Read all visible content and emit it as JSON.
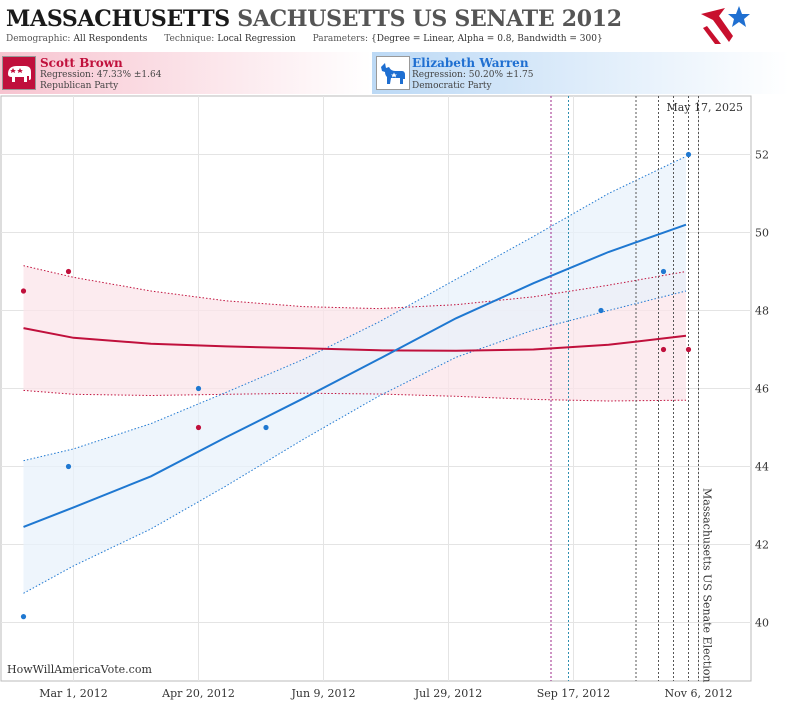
{
  "header": {
    "title_part1": "MASSACHUSETTS",
    "title_part2": "SACHUSETTS US SENATE",
    "title_year": "2012",
    "demographic_label": "Demographic:",
    "demographic_value": "All Respondents",
    "technique_label": "Technique:",
    "technique_value": "Local Regression",
    "parameters_label": "Parameters:",
    "parameters_value": "{Degree = Linear, Alpha = 0.8, Bandwidth = 300}"
  },
  "candidates": [
    {
      "name": "Scott Brown",
      "regression": "Regression: 47.33% ±1.64",
      "party": "Republican Party",
      "color": "#c0103c"
    },
    {
      "name": "Elizabeth Warren",
      "regression": "Regression: 50.20% ±1.75",
      "party": "Democratic Party",
      "color": "#1f78d1"
    }
  ],
  "chart_data": {
    "type": "line",
    "date_label": "May 17, 2025",
    "watermark": "HowWillAmericaVote.com",
    "election_label": "Massachusetts US Senate Election",
    "x_ticks": [
      "Mar 1, 2012",
      "Apr 20, 2012",
      "Jun 9, 2012",
      "Jul 29, 2012",
      "Sep 17, 2012",
      "Nov 6, 2012"
    ],
    "xlim": [
      "2012-02-01",
      "2012-11-27"
    ],
    "ylim": [
      38.5,
      53.5
    ],
    "y_ticks": [
      40,
      42,
      44,
      46,
      48,
      50,
      52
    ],
    "grid": true,
    "vlines": [
      {
        "date": "2012-09-08",
        "color": "#9c2a8a"
      },
      {
        "date": "2012-09-15",
        "color": "#2f8fb0"
      },
      {
        "date": "2012-10-12",
        "color": "#555555"
      },
      {
        "date": "2012-10-21",
        "color": "#555555"
      },
      {
        "date": "2012-10-27",
        "color": "#555555"
      },
      {
        "date": "2012-11-02",
        "color": "#555555"
      },
      {
        "date": "2012-11-06",
        "color": "#555555"
      }
    ],
    "series": [
      {
        "name": "Scott Brown",
        "color": "#c0103c",
        "band_fill": "#fbe4ea",
        "trend": [
          [
            "2012-02-10",
            47.55
          ],
          [
            "2012-03-01",
            47.3
          ],
          [
            "2012-04-01",
            47.15
          ],
          [
            "2012-05-01",
            47.08
          ],
          [
            "2012-06-01",
            47.03
          ],
          [
            "2012-07-01",
            46.98
          ],
          [
            "2012-08-01",
            46.97
          ],
          [
            "2012-09-01",
            47.0
          ],
          [
            "2012-10-01",
            47.12
          ],
          [
            "2012-11-01",
            47.35
          ]
        ],
        "upper": [
          [
            "2012-02-10",
            49.15
          ],
          [
            "2012-03-01",
            48.85
          ],
          [
            "2012-04-01",
            48.5
          ],
          [
            "2012-05-01",
            48.25
          ],
          [
            "2012-06-01",
            48.1
          ],
          [
            "2012-07-01",
            48.05
          ],
          [
            "2012-08-01",
            48.15
          ],
          [
            "2012-09-01",
            48.35
          ],
          [
            "2012-10-01",
            48.65
          ],
          [
            "2012-11-01",
            49.0
          ]
        ],
        "lower": [
          [
            "2012-02-10",
            45.95
          ],
          [
            "2012-03-01",
            45.85
          ],
          [
            "2012-04-01",
            45.82
          ],
          [
            "2012-05-01",
            45.85
          ],
          [
            "2012-06-01",
            45.88
          ],
          [
            "2012-07-01",
            45.86
          ],
          [
            "2012-08-01",
            45.8
          ],
          [
            "2012-09-01",
            45.72
          ],
          [
            "2012-10-01",
            45.68
          ],
          [
            "2012-11-01",
            45.7
          ]
        ],
        "points": [
          [
            "2012-02-10",
            48.5
          ],
          [
            "2012-02-28",
            49.0
          ],
          [
            "2012-04-20",
            45.0
          ],
          [
            "2012-10-23",
            47.0
          ],
          [
            "2012-11-02",
            47.0
          ]
        ]
      },
      {
        "name": "Elizabeth Warren",
        "color": "#1f78d1",
        "band_fill": "#e8f1fb",
        "trend": [
          [
            "2012-02-10",
            42.45
          ],
          [
            "2012-03-01",
            42.95
          ],
          [
            "2012-04-01",
            43.75
          ],
          [
            "2012-05-01",
            44.75
          ],
          [
            "2012-06-01",
            45.75
          ],
          [
            "2012-07-01",
            46.75
          ],
          [
            "2012-08-01",
            47.8
          ],
          [
            "2012-09-01",
            48.7
          ],
          [
            "2012-10-01",
            49.5
          ],
          [
            "2012-11-01",
            50.2
          ]
        ],
        "upper": [
          [
            "2012-02-10",
            44.15
          ],
          [
            "2012-03-01",
            44.45
          ],
          [
            "2012-04-01",
            45.1
          ],
          [
            "2012-05-01",
            45.9
          ],
          [
            "2012-06-01",
            46.75
          ],
          [
            "2012-07-01",
            47.7
          ],
          [
            "2012-08-01",
            48.8
          ],
          [
            "2012-09-01",
            49.9
          ],
          [
            "2012-10-01",
            51.0
          ],
          [
            "2012-11-01",
            51.95
          ]
        ],
        "lower": [
          [
            "2012-02-10",
            40.75
          ],
          [
            "2012-03-01",
            41.45
          ],
          [
            "2012-04-01",
            42.4
          ],
          [
            "2012-05-01",
            43.5
          ],
          [
            "2012-06-01",
            44.7
          ],
          [
            "2012-07-01",
            45.8
          ],
          [
            "2012-08-01",
            46.8
          ],
          [
            "2012-09-01",
            47.5
          ],
          [
            "2012-10-01",
            48.0
          ],
          [
            "2012-11-01",
            48.5
          ]
        ],
        "points": [
          [
            "2012-02-10",
            40.15
          ],
          [
            "2012-02-28",
            44.0
          ],
          [
            "2012-04-20",
            46.0
          ],
          [
            "2012-05-17",
            45.0
          ],
          [
            "2012-09-28",
            48.0
          ],
          [
            "2012-10-23",
            49.0
          ],
          [
            "2012-11-02",
            52.0
          ]
        ]
      }
    ]
  }
}
